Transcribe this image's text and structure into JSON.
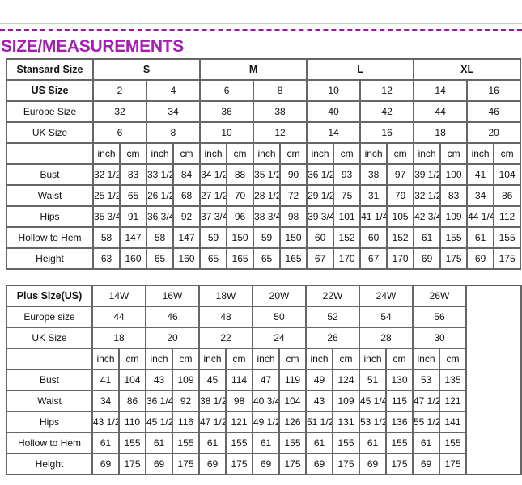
{
  "title": "SIZE/MEASUREMENTS",
  "accent_color": "#a21fb0",
  "standard": {
    "header_label": "Stansard Size",
    "groups": [
      "S",
      "M",
      "L",
      "XL"
    ],
    "us_label": "US Size",
    "us": [
      "2",
      "4",
      "6",
      "8",
      "10",
      "12",
      "14",
      "16"
    ],
    "europe_label": "Europe Size",
    "europe": [
      "32",
      "34",
      "36",
      "38",
      "40",
      "42",
      "44",
      "46"
    ],
    "uk_label": "UK Size",
    "uk": [
      "6",
      "8",
      "10",
      "12",
      "14",
      "16",
      "18",
      "20"
    ],
    "unit_inch": "inch",
    "unit_cm": "cm",
    "rows": [
      {
        "label": "Bust",
        "values": [
          "32 1/2",
          "83",
          "33 1/2",
          "84",
          "34 1/2",
          "88",
          "35 1/2",
          "90",
          "36 1/2",
          "93",
          "38",
          "97",
          "39 1/2",
          "100",
          "41",
          "104"
        ]
      },
      {
        "label": "Waist",
        "values": [
          "25 1/2",
          "65",
          "26 1/2",
          "68",
          "27 1/2",
          "70",
          "28 1/2",
          "72",
          "29 1/2",
          "75",
          "31",
          "79",
          "32 1/2",
          "83",
          "34",
          "86"
        ]
      },
      {
        "label": "Hips",
        "values": [
          "35 3/4",
          "91",
          "36 3/4",
          "92",
          "37 3/4",
          "96",
          "38 3/4",
          "98",
          "39 3/4",
          "101",
          "41 1/4",
          "105",
          "42 3/4",
          "109",
          "44 1/4",
          "112"
        ]
      },
      {
        "label": "Hollow to Hem",
        "values": [
          "58",
          "147",
          "58",
          "147",
          "59",
          "150",
          "59",
          "150",
          "60",
          "152",
          "60",
          "152",
          "61",
          "155",
          "61",
          "155"
        ]
      },
      {
        "label": "Height",
        "values": [
          "63",
          "160",
          "65",
          "160",
          "65",
          "165",
          "65",
          "165",
          "67",
          "170",
          "67",
          "170",
          "69",
          "175",
          "69",
          "175"
        ]
      }
    ]
  },
  "plus": {
    "header_label": "Plus Size(US)",
    "us": [
      "14W",
      "16W",
      "18W",
      "20W",
      "22W",
      "24W",
      "26W"
    ],
    "europe_label": "Europe size",
    "europe": [
      "44",
      "46",
      "48",
      "50",
      "52",
      "54",
      "56"
    ],
    "uk_label": "UK Size",
    "uk": [
      "18",
      "20",
      "22",
      "24",
      "26",
      "28",
      "30"
    ],
    "unit_inch": "inch",
    "unit_cm": "cm",
    "rows": [
      {
        "label": "Bust",
        "values": [
          "41",
          "104",
          "43",
          "109",
          "45",
          "114",
          "47",
          "119",
          "49",
          "124",
          "51",
          "130",
          "53",
          "135"
        ]
      },
      {
        "label": "Waist",
        "values": [
          "34",
          "86",
          "36 1/4",
          "92",
          "38 1/2",
          "98",
          "40 3/4",
          "104",
          "43",
          "109",
          "45 1/4",
          "115",
          "47 1/2",
          "121"
        ]
      },
      {
        "label": "Hips",
        "values": [
          "43 1/2",
          "110",
          "45 1/2",
          "116",
          "47 1/2",
          "121",
          "49 1/2",
          "126",
          "51 1/2",
          "131",
          "53 1/2",
          "136",
          "55 1/2",
          "141"
        ]
      },
      {
        "label": "Hollow to Hem",
        "values": [
          "61",
          "155",
          "61",
          "155",
          "61",
          "155",
          "61",
          "155",
          "61",
          "155",
          "61",
          "155",
          "61",
          "155"
        ]
      },
      {
        "label": "Height",
        "values": [
          "69",
          "175",
          "69",
          "175",
          "69",
          "175",
          "69",
          "175",
          "69",
          "175",
          "69",
          "175",
          "69",
          "175"
        ]
      }
    ]
  }
}
